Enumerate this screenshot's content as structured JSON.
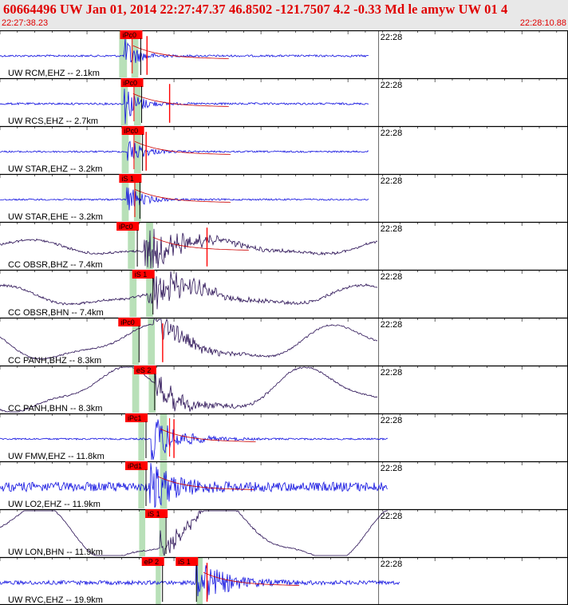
{
  "header": {
    "title": "60664496 UW Jan 01, 2014 22:27:47.37    46.8502 -121.7507  4.2 -0.33 Md le amyw UW 01   4",
    "start_time": "22:27:38.23",
    "end_time": "22:28:10.88"
  },
  "colors": {
    "vertical": "#1010e0",
    "horizontal": "#2a1055",
    "pick_flag": "#ff0000",
    "pick_band": "#b8e0b8",
    "header_text": "#e00000"
  },
  "chart_data": {
    "type": "seismogram",
    "time_start_s": 0,
    "time_end_s": 32.65,
    "time_marker": {
      "label": "22:28",
      "t": 21.77
    },
    "tracks": [
      {
        "label": "UW RCM,EHZ -- 2.1km",
        "comp": "Z",
        "amp": 0.25,
        "end_t": 21.2,
        "picks": [
          {
            "label": "iPc0",
            "t": 6.9
          }
        ],
        "s_pick": 7.6,
        "band": [
          6.85,
          7.3
        ],
        "s_band": [
          7.55,
          7.95
        ],
        "red_line": 8.45,
        "ev": [
          7.15,
          0.6
        ],
        "long": 0,
        "noise": 0.06
      },
      {
        "label": "UW RCS,EHZ -- 2.7km",
        "comp": "Z",
        "amp": 0.28,
        "end_t": 21.2,
        "picks": [
          {
            "label": "iPc0",
            "t": 6.95
          }
        ],
        "s_pick": 7.7,
        "band": [
          6.95,
          7.35
        ],
        "s_band": [
          7.7,
          8.1
        ],
        "red_line": 9.75,
        "ev": [
          7.15,
          0.65
        ],
        "long": 0,
        "noise": 0.06
      },
      {
        "label": "UW STAR,EHZ -- 3.2km",
        "comp": "Z",
        "amp": 0.22,
        "end_t": 21.2,
        "picks": [
          {
            "label": "iPc0",
            "t": 7.0
          }
        ],
        "s_pick": 7.7,
        "band": [
          7.0,
          7.4
        ],
        "s_band": [
          7.7,
          8.1
        ],
        "red_line": 8.4,
        "ev": [
          7.25,
          0.7
        ],
        "long": 0,
        "noise": 0.05
      },
      {
        "label": "UW STAR,EHE -- 3.2km",
        "comp": "Z",
        "amp": 0.22,
        "end_t": 21.2,
        "picks": [
          {
            "label": "iS 1",
            "t": 6.85
          }
        ],
        "s_pick": 7.75,
        "band": [
          7.0,
          7.4
        ],
        "s_band": [
          7.7,
          8.1
        ],
        "red_line": 0,
        "ev": [
          7.25,
          0.7
        ],
        "long": 0,
        "noise": 0.05
      },
      {
        "label": "CC OBSR,BHZ -- 7.4km",
        "comp": "H",
        "amp": 0.3,
        "end_t": 21.7,
        "picks": [
          {
            "label": "iPc0",
            "t": 6.7
          }
        ],
        "s_pick": 0,
        "band": [
          7.35,
          7.75
        ],
        "s_band": [
          8.4,
          8.8
        ],
        "red_line": 11.9,
        "ev": [
          8.3,
          1.8
        ],
        "long": 0.15,
        "noise": 0.06
      },
      {
        "label": "CC OBSR,BHN -- 7.4km",
        "comp": "H",
        "amp": 0.3,
        "end_t": 21.7,
        "picks": [
          {
            "label": "iS 1",
            "t": 7.6
          }
        ],
        "s_pick": 0,
        "band": [
          7.45,
          7.85
        ],
        "s_band": [
          8.4,
          8.8
        ],
        "red_line": 0,
        "ev": [
          8.5,
          1.8
        ],
        "long": 0.2,
        "noise": 0.06
      },
      {
        "label": "CC PANH,BHZ -- 8.3km",
        "comp": "H",
        "amp": 0.2,
        "end_t": 21.7,
        "picks": [
          {
            "label": "iPc0",
            "t": 6.8
          }
        ],
        "s_pick": 0,
        "band": [
          7.6,
          8.0
        ],
        "s_band": [
          8.5,
          8.9
        ],
        "red_line": 9.35,
        "ev": [
          8.8,
          1.6
        ],
        "long": 0.35,
        "noise": 0.04
      },
      {
        "label": "CC PANH,BHN -- 8.3km",
        "comp": "H",
        "amp": 0.2,
        "end_t": 21.7,
        "picks": [
          {
            "label": "eS 2",
            "t": 7.7
          }
        ],
        "s_pick": 0,
        "band": [
          7.6,
          8.0
        ],
        "s_band": [
          8.55,
          8.95
        ],
        "red_line": 0,
        "ev": [
          8.9,
          1.6
        ],
        "long": 0.45,
        "noise": 0.04
      },
      {
        "label": "UW FMW,EHZ -- 11.8km",
        "comp": "Z",
        "amp": 0.35,
        "end_t": 22.3,
        "picks": [
          {
            "label": "iPc1",
            "t": 7.2
          }
        ],
        "s_pick": 9.75,
        "band": [
          7.95,
          8.3
        ],
        "s_band": [
          9.2,
          9.6
        ],
        "red_line": 10.0,
        "ev": [
          8.7,
          1.2
        ],
        "long": 0,
        "noise": 0.05
      },
      {
        "label": "UW LO2,EHZ -- 11.9km",
        "comp": "Z",
        "amp": 0.35,
        "end_t": 22.3,
        "picks": [
          {
            "label": "iPd1",
            "t": 7.2
          }
        ],
        "s_pick": 0,
        "band": [
          7.95,
          8.3
        ],
        "s_band": [
          9.2,
          9.6
        ],
        "red_line": 0,
        "ev": [
          8.6,
          1.1
        ],
        "long": 0,
        "noise": 0.28
      },
      {
        "label": "UW LON,BHN -- 11.9km",
        "comp": "H",
        "amp": 0.2,
        "end_t": 22.3,
        "picks": [
          {
            "label": "iS 1",
            "t": 8.35
          }
        ],
        "s_pick": 0,
        "band": [
          8.0,
          8.35
        ],
        "s_band": [
          9.15,
          9.5
        ],
        "red_line": 0,
        "ev": [
          9.2,
          1.2
        ],
        "long": 0.6,
        "noise": 0.03
      },
      {
        "label": "UW RVC,EHZ -- 19.9km",
        "comp": "Z",
        "amp": 0.35,
        "end_t": 23.0,
        "picks": [
          {
            "label": "eP 2",
            "t": 8.15
          },
          {
            "label": "iS 1",
            "t": 10.1
          }
        ],
        "s_pick": 0,
        "band": [
          8.95,
          9.25
        ],
        "s_band": [
          11.3,
          11.65
        ],
        "red_line": 11.9,
        "ev": [
          11.2,
          1.3
        ],
        "long": 0,
        "noise": 0.12
      }
    ]
  }
}
